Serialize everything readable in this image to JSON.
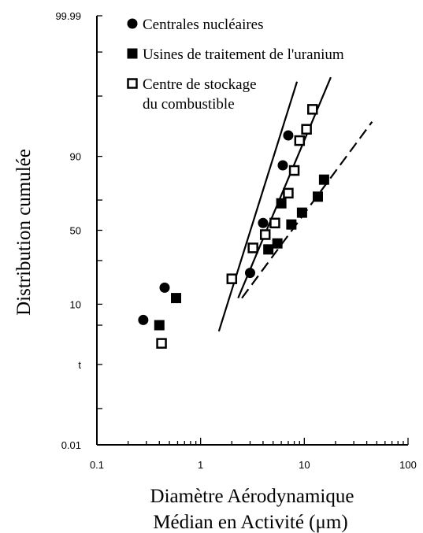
{
  "chart_data": {
    "type": "scatter",
    "xlabel_lines": [
      "Diamètre Aérodynamique",
      "Médian en Activité  (μm)"
    ],
    "ylabel": "Distribution  cumulée",
    "x_scale": "log",
    "y_scale": "probability",
    "xlim": [
      0.1,
      100
    ],
    "ylim": [
      0.01,
      99.99
    ],
    "x_tick_labels": [
      {
        "value": 0.1,
        "label": "0.1"
      },
      {
        "value": 1,
        "label": "1"
      },
      {
        "value": 10,
        "label": "10"
      },
      {
        "value": 100,
        "label": "100"
      }
    ],
    "y_tick_labels": [
      {
        "value": 0.01,
        "label": "0.01"
      },
      {
        "value": 1,
        "label": "t"
      },
      {
        "value": 10,
        "label": "10"
      },
      {
        "value": 50,
        "label": "50"
      },
      {
        "value": 90,
        "label": "90"
      },
      {
        "value": 99.99,
        "label": "99.99"
      }
    ],
    "y_minor_ticks": [
      0.1,
      5,
      30,
      70,
      99,
      99.9
    ],
    "legend_position": "top-left",
    "series": [
      {
        "name": "Centrales nucléaires",
        "marker": "filled-circle",
        "points": [
          {
            "x": 0.28,
            "y": 6
          },
          {
            "x": 0.45,
            "y": 16
          },
          {
            "x": 3.0,
            "y": 23
          },
          {
            "x": 4.0,
            "y": 55
          },
          {
            "x": 6.2,
            "y": 87
          },
          {
            "x": 7.0,
            "y": 95
          }
        ],
        "fit_line": {
          "style": "solid",
          "from": {
            "x": 1.5,
            "y": 4
          },
          "to": {
            "x": 8.5,
            "y": 99.5
          }
        }
      },
      {
        "name": "Usines de traitement de l'uranium",
        "marker": "filled-square",
        "points": [
          {
            "x": 0.4,
            "y": 5
          },
          {
            "x": 0.58,
            "y": 12
          },
          {
            "x": 4.5,
            "y": 37
          },
          {
            "x": 5.5,
            "y": 41
          },
          {
            "x": 6.0,
            "y": 68
          },
          {
            "x": 7.5,
            "y": 54
          },
          {
            "x": 9.5,
            "y": 62
          },
          {
            "x": 13.5,
            "y": 72
          },
          {
            "x": 15.5,
            "y": 81
          }
        ],
        "fit_line": {
          "style": "dashed",
          "from": {
            "x": 2.5,
            "y": 12
          },
          "to": {
            "x": 45,
            "y": 97
          }
        }
      },
      {
        "name": "Centre de stockage du combustible",
        "marker": "open-square",
        "points": [
          {
            "x": 0.42,
            "y": 2.5
          },
          {
            "x": 2.0,
            "y": 20
          },
          {
            "x": 3.2,
            "y": 38
          },
          {
            "x": 4.2,
            "y": 47
          },
          {
            "x": 5.2,
            "y": 55
          },
          {
            "x": 7.0,
            "y": 74
          },
          {
            "x": 8.0,
            "y": 85
          },
          {
            "x": 9.0,
            "y": 94
          },
          {
            "x": 10.5,
            "y": 96
          },
          {
            "x": 12.0,
            "y": 98.2
          }
        ],
        "fit_line": {
          "style": "solid",
          "from": {
            "x": 2.3,
            "y": 12
          },
          "to": {
            "x": 18,
            "y": 99.6
          }
        }
      }
    ],
    "legend": [
      {
        "marker": "filled-circle",
        "lines": [
          "Centrales nucléaires"
        ]
      },
      {
        "marker": "filled-square",
        "lines": [
          "Usines de traitement de l'uranium"
        ]
      },
      {
        "marker": "open-square",
        "lines": [
          "Centre de stockage",
          "du combustible"
        ]
      }
    ]
  }
}
